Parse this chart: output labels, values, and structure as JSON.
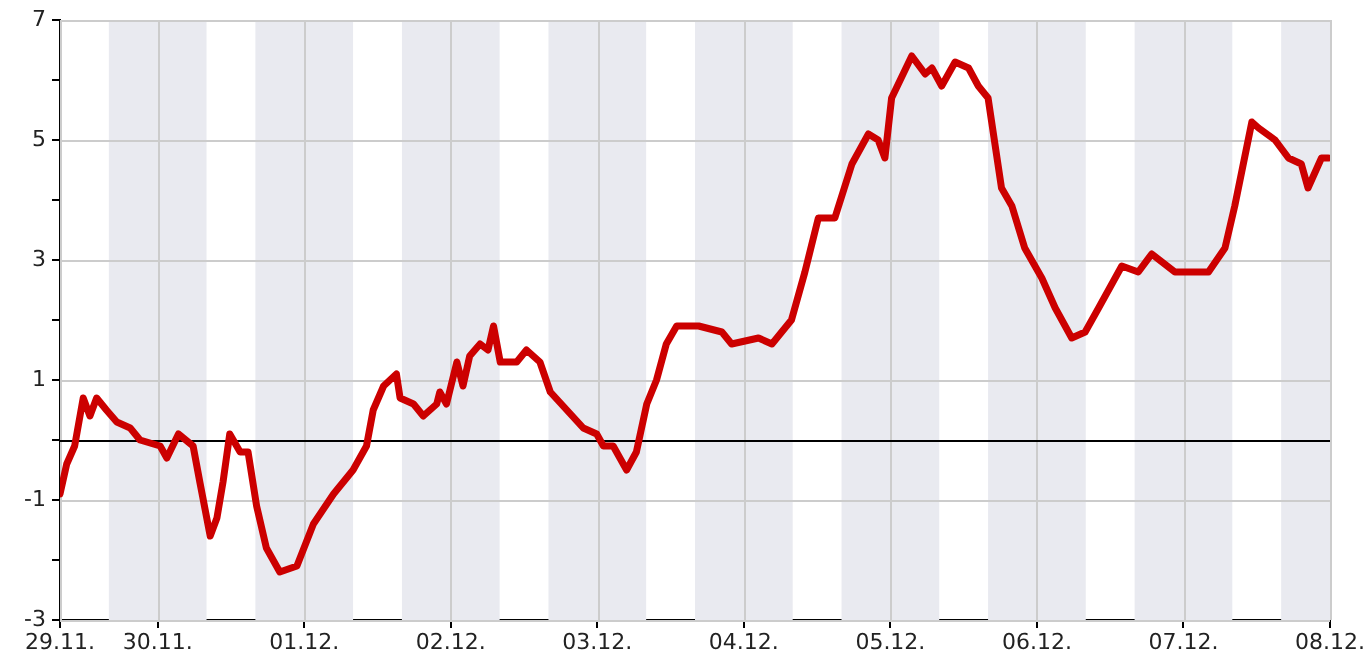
{
  "chart_data": {
    "type": "line",
    "series": [
      {
        "color": "#cc0000",
        "x": [
          "--11-29T08:00",
          "--11-29T09:06",
          "--11-29T10:24",
          "--11-29T11:48",
          "--11-29T12:54",
          "--11-29T14:00",
          "--11-29T15:36",
          "--11-29T17:18",
          "--11-29T19:30",
          "--11-29T21:06",
          "--11-30T00:24",
          "--11-30T01:30",
          "--11-30T03:24",
          "--11-30T05:48",
          "--11-30T06:54",
          "--11-30T08:36",
          "--11-30T09:42",
          "--11-30T10:42",
          "--11-30T11:48",
          "--11-30T13:30",
          "--11-30T14:48",
          "--11-30T16:12",
          "--11-30T17:48",
          "--11-30T20:00",
          "--11-30T22:48",
          "--12-01T01:30",
          "--12-01T04:48",
          "--12-01T08:00",
          "--12-01T10:12",
          "--12-01T11:18",
          "--12-01T13:00",
          "--12-01T15:06",
          "--12-01T15:42",
          "--12-01T17:54",
          "--12-01T19:30",
          "--12-01T21:42",
          "--12-01T22:12",
          "--12-01T23:18",
          "--12-02T01:00",
          "--12-02T02:00",
          "--12-02T03:06",
          "--12-02T04:48",
          "--12-02T06:06",
          "--12-02T07:00",
          "--12-02T08:06",
          "--12-02T10:48",
          "--12-02T12:24",
          "--12-02T14:36",
          "--12-02T16:18",
          "--12-02T19:00",
          "--12-02T21:42",
          "--12-02T23:54",
          "--12-03T01:00",
          "--12-03T02:36",
          "--12-03T04:48",
          "--12-03T06:24",
          "--12-03T08:06",
          "--12-03T09:42",
          "--12-03T11:18",
          "--12-03T13:00",
          "--12-03T16:36",
          "--12-03T20:24",
          "--12-03T22:00",
          "--12-04T02:24",
          "--12-04T04:36",
          "--12-04T07:48",
          "--12-04T10:00",
          "--12-04T12:12",
          "--12-04T14:54",
          "--12-04T17:42",
          "--12-04T20:24",
          "--12-04T22:00",
          "--12-04T23:06",
          "--12-05T00:12",
          "--12-05T03:30",
          "--12-05T05:42",
          "--12-05T06:48",
          "--12-05T08:24",
          "--12-05T10:36",
          "--12-05T12:48",
          "--12-05T14:24",
          "--12-05T16:00",
          "--12-05T18:12",
          "--12-05T19:54",
          "--12-05T22:00",
          "--12-06T00:48",
          "--12-06T03:00",
          "--12-06T05:42",
          "--12-06T07:54",
          "--12-06T10:06",
          "--12-06T13:54",
          "--12-06T16:36",
          "--12-06T18:48",
          "--12-06T22:36",
          "--12-07T04:06",
          "--12-07T06:48",
          "--12-07T08:24",
          "--12-07T11:12",
          "--12-07T12:18",
          "--12-07T15:00",
          "--12-07T17:12",
          "--12-07T19:18",
          "--12-07T20:24",
          "--12-07T22:36",
          "--12-07T23:42"
        ],
        "values": [
          -0.9,
          -0.4,
          -0.1,
          0.7,
          0.4,
          0.7,
          0.5,
          0.3,
          0.2,
          0,
          -0.1,
          -0.3,
          0.1,
          -0.1,
          -0.7,
          -1.6,
          -1.3,
          -0.7,
          0.1,
          -0.2,
          -0.2,
          -1.1,
          -1.8,
          -2.2,
          -2.1,
          -1.4,
          -0.9,
          -0.5,
          -0.1,
          0.5,
          0.9,
          1.1,
          0.7,
          0.6,
          0.4,
          0.6,
          0.8,
          0.6,
          1.3,
          0.9,
          1.4,
          1.6,
          1.5,
          1.9,
          1.3,
          1.3,
          1.5,
          1.3,
          0.8,
          0.5,
          0.2,
          0.1,
          -0.1,
          -0.1,
          -0.5,
          -0.2,
          0.6,
          1,
          1.6,
          1.9,
          1.9,
          1.8,
          1.6,
          1.7,
          1.6,
          2,
          2.8,
          3.7,
          3.7,
          4.6,
          5.1,
          5,
          4.7,
          5.7,
          6.4,
          6.1,
          6.2,
          5.9,
          6.3,
          6.2,
          5.9,
          5.7,
          4.2,
          3.9,
          3.2,
          2.7,
          2.2,
          1.7,
          1.8,
          2.2,
          2.9,
          2.8,
          3.1,
          2.8,
          2.8,
          3.2,
          3.9,
          5.3,
          5.2,
          5,
          4.7,
          4.6,
          4.2,
          4.7,
          4.7
        ]
      }
    ],
    "xlim": [
      "--11-29T08:00",
      "--12-08"
    ],
    "xticks": [
      {
        "value": "--11-29T08:00",
        "label": "29.11."
      },
      {
        "value": "--11-30",
        "label": "30.11."
      },
      {
        "value": "--12-01",
        "label": "01.12."
      },
      {
        "value": "--12-02",
        "label": "02.12."
      },
      {
        "value": "--12-03",
        "label": "03.12."
      },
      {
        "value": "--12-04",
        "label": "04.12."
      },
      {
        "value": "--12-05",
        "label": "05.12."
      },
      {
        "value": "--12-06",
        "label": "06.12."
      },
      {
        "value": "--12-07",
        "label": "07.12."
      },
      {
        "value": "--12-08",
        "label": "08.12."
      }
    ],
    "ylim": [
      -3,
      7
    ],
    "yticks": [
      -3,
      {
        "value": -2,
        "label": null
      },
      -1,
      {
        "value": 0,
        "label": null
      },
      1,
      {
        "value": 2,
        "label": null
      },
      3,
      {
        "value": 4,
        "label": null
      },
      5,
      {
        "value": 6,
        "label": null
      },
      7
    ],
    "grid": true,
    "marker": "none",
    "line_style": "solid",
    "ref_lines": [
      {
        "axis": "y",
        "value": 0,
        "color": "#000000"
      }
    ],
    "bands": [
      {
        "axis": "x",
        "from": "--11-29T16:00",
        "to": "--11-30T08:00",
        "color": "#e9eaf0"
      },
      {
        "axis": "x",
        "from": "--11-30T16:00",
        "to": "--12-01T08:00",
        "color": "#e9eaf0"
      },
      {
        "axis": "x",
        "from": "--12-01T16:00",
        "to": "--12-02T08:00",
        "color": "#e9eaf0"
      },
      {
        "axis": "x",
        "from": "--12-02T16:00",
        "to": "--12-03T08:00",
        "color": "#e9eaf0"
      },
      {
        "axis": "x",
        "from": "--12-03T16:00",
        "to": "--12-04T08:00",
        "color": "#e9eaf0"
      },
      {
        "axis": "x",
        "from": "--12-04T16:00",
        "to": "--12-05T08:00",
        "color": "#e9eaf0"
      },
      {
        "axis": "x",
        "from": "--12-05T16:00",
        "to": "--12-06T08:00",
        "color": "#e9eaf0"
      },
      {
        "axis": "x",
        "from": "--12-06T16:00",
        "to": "--12-07T08:00",
        "color": "#e9eaf0"
      },
      {
        "axis": "x",
        "from": "--12-07T16:00",
        "to": "--12-08",
        "color": "#e9eaf0"
      }
    ]
  }
}
